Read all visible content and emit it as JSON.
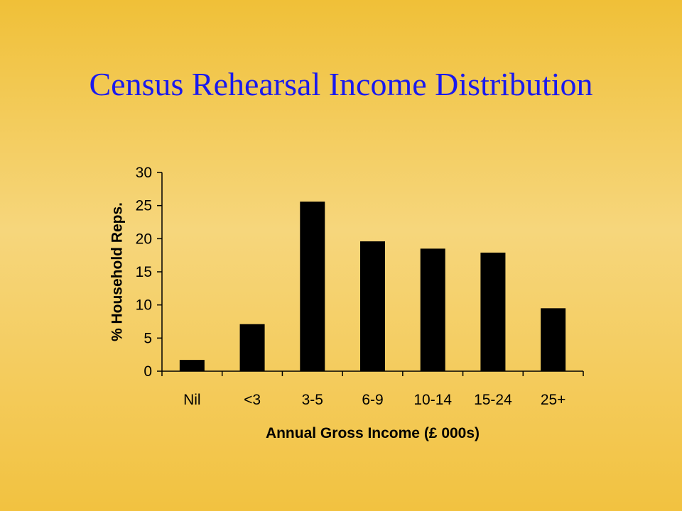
{
  "slide": {
    "title": "Census Rehearsal Income Distribution"
  },
  "chart_data": {
    "type": "bar",
    "title": "",
    "xlabel": "Annual Gross Income (£ 000s)",
    "ylabel": "% Household Reps.",
    "categories": [
      "Nil",
      "<3",
      "3-5",
      "6-9",
      "10-14",
      "15-24",
      "25+"
    ],
    "values": [
      1.7,
      7.1,
      25.6,
      19.6,
      18.5,
      17.9,
      9.5
    ],
    "ylim": [
      0,
      30
    ],
    "yticks": [
      "0",
      "5",
      "10",
      "15",
      "20",
      "25",
      "30"
    ],
    "grid": false,
    "legend": "none",
    "bar_color": "#000000"
  }
}
